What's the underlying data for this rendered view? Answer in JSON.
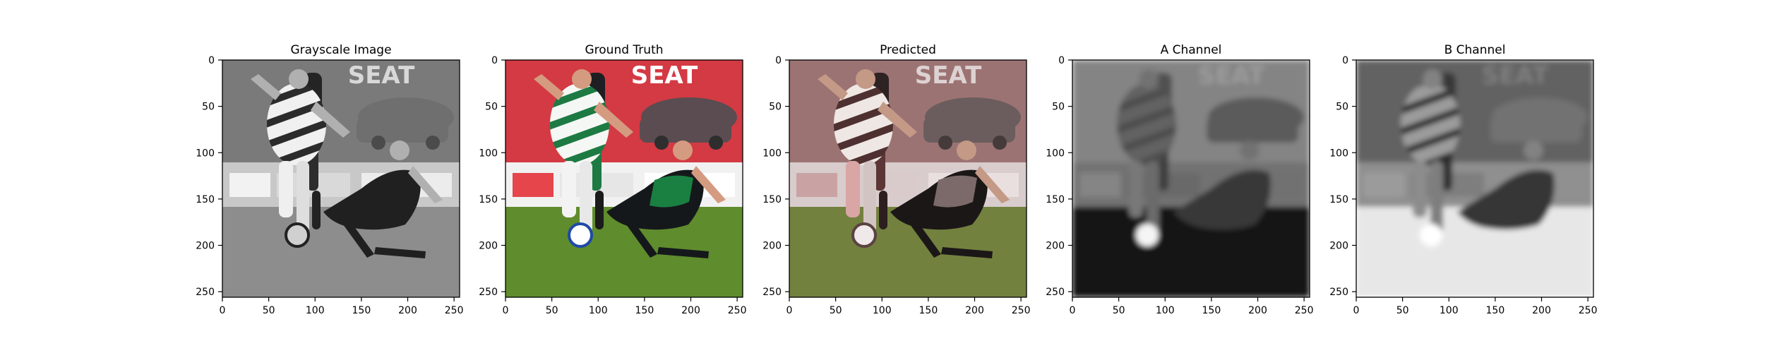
{
  "figure": {
    "panels": [
      {
        "title": "Grayscale Image",
        "mode": "grayscale",
        "x_ticks": [
          "0",
          "50",
          "100",
          "150",
          "200",
          "250"
        ],
        "y_ticks": [
          "0",
          "50",
          "100",
          "150",
          "200",
          "250"
        ]
      },
      {
        "title": "Ground Truth",
        "mode": "color",
        "x_ticks": [
          "0",
          "50",
          "100",
          "150",
          "200",
          "250"
        ],
        "y_ticks": [
          "0",
          "50",
          "100",
          "150",
          "200",
          "250"
        ]
      },
      {
        "title": "Predicted",
        "mode": "predicted",
        "x_ticks": [
          "0",
          "50",
          "100",
          "150",
          "200",
          "250"
        ],
        "y_ticks": [
          "0",
          "50",
          "100",
          "150",
          "200",
          "250"
        ]
      },
      {
        "title": "A Channel",
        "mode": "a_channel",
        "x_ticks": [
          "0",
          "50",
          "100",
          "150",
          "200",
          "250"
        ],
        "y_ticks": [
          "0",
          "50",
          "100",
          "150",
          "200",
          "250"
        ]
      },
      {
        "title": "B Channel",
        "mode": "b_channel",
        "x_ticks": [
          "0",
          "50",
          "100",
          "150",
          "200",
          "250"
        ],
        "y_ticks": [
          "0",
          "50",
          "100",
          "150",
          "200",
          "250"
        ]
      }
    ],
    "tick_values": [
      0,
      50,
      100,
      150,
      200,
      250
    ],
    "axis_range": [
      0,
      256
    ],
    "scene_text": "SEAT",
    "palette": {
      "gray": {
        "background_upper": "#7a7a7a",
        "ad_board": "#c8c8c8",
        "ground": "#8d8d8d",
        "striped_light": "#f0f0f0",
        "striped_dark": "#2b2b2b",
        "dark_player": "#202020",
        "car": "#6f6f6f",
        "skin": "#b0b0b0"
      },
      "color": {
        "background_upper": "#d33a43",
        "ad_board": "#f1f1f1",
        "ground": "#5f8c2d",
        "striped_light": "#f5f7f4",
        "striped_dark": "#1d7a43",
        "dark_player": "#15181b",
        "car": "#5a4c50",
        "skin": "#d49b80"
      },
      "predicted": {
        "background_upper": "#9c7373",
        "ad_board": "#d8cccc",
        "ground": "#73813f",
        "striped_light": "#efe7e3",
        "striped_dark": "#4e3030",
        "dark_player": "#1c1717",
        "car": "#6b5d5d",
        "skin": "#c49986"
      },
      "a_channel": {
        "background_upper": "#8a8a8a",
        "ad_board": "#777777",
        "ground": "#141414",
        "striped_light": "#666666",
        "striped_dark": "#4f4f4f",
        "dark_player": "#3a3a3a",
        "car": "#5f5f5f",
        "skin": "#777777"
      },
      "b_channel": {
        "background_upper": "#5f5f5f",
        "ad_board": "#8d8d8d",
        "ground": "#e7e7e7",
        "striped_light": "#9a9a9a",
        "striped_dark": "#242424",
        "dark_player": "#313131",
        "car": "#6f6f6f",
        "skin": "#808080"
      }
    }
  }
}
